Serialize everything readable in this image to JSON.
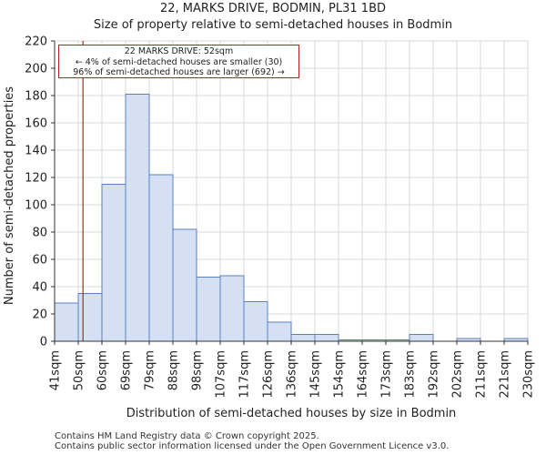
{
  "title": "22, MARKS DRIVE, BODMIN, PL31 1BD",
  "subtitle": "Size of property relative to semi-detached houses in Bodmin",
  "annotation": {
    "line1": "22 MARKS DRIVE: 52sqm",
    "line2": "← 4% of semi-detached houses are smaller (30)",
    "line3": "96% of semi-detached houses are larger (692) →"
  },
  "footer": {
    "line1": "Contains HM Land Registry data © Crown copyright 2025.",
    "line2": "Contains public sector information licensed under the Open Government Licence v3.0."
  },
  "colors": {
    "bar_fill": "#d6e0f4",
    "bar_stroke": "#5b7fbf",
    "marker": "#b22222",
    "grid": "#d9d9d9"
  },
  "chart_data": {
    "type": "bar",
    "xlabel": "Distribution of semi-detached houses by size in Bodmin",
    "ylabel": "Number of semi-detached properties",
    "ylim": [
      0,
      220
    ],
    "yticks": [
      0,
      20,
      40,
      60,
      80,
      100,
      120,
      140,
      160,
      180,
      200,
      220
    ],
    "tick_labels": [
      "41sqm",
      "50sqm",
      "60sqm",
      "69sqm",
      "79sqm",
      "88sqm",
      "98sqm",
      "107sqm",
      "117sqm",
      "126sqm",
      "136sqm",
      "145sqm",
      "154sqm",
      "164sqm",
      "173sqm",
      "183sqm",
      "192sqm",
      "202sqm",
      "211sqm",
      "221sqm",
      "230sqm"
    ],
    "values": [
      28,
      35,
      115,
      181,
      122,
      82,
      47,
      48,
      29,
      14,
      5,
      5,
      1,
      1,
      1,
      5,
      0,
      2,
      0,
      2
    ],
    "marker_value": 52,
    "marker_label": "22 MARKS DRIVE: 52sqm",
    "grid": true
  }
}
